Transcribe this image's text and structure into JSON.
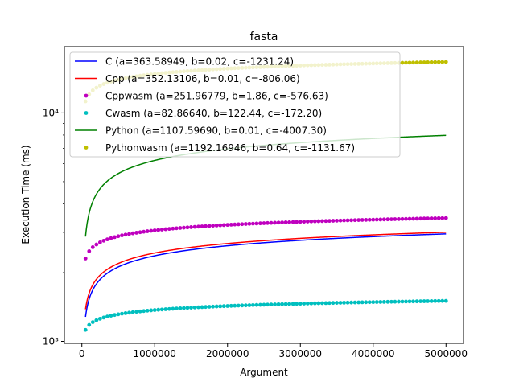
{
  "chart_data": {
    "type": "line",
    "title": "fasta",
    "xlabel": "Argument",
    "ylabel": "Execution Time (ms)",
    "xlim": [
      -240000,
      5240000
    ],
    "ylim": [
      980,
      19500
    ],
    "yscale": "log",
    "grid": false,
    "legend_position": "upper-left",
    "x_ticks": [
      0,
      1000000,
      2000000,
      3000000,
      4000000,
      5000000
    ],
    "x_tick_labels": [
      "0",
      "1000000",
      "2000000",
      "3000000",
      "4000000",
      "5000000"
    ],
    "y_ticks": [
      1000,
      10000
    ],
    "y_tick_labels": [
      "10³",
      "10⁴"
    ],
    "x_range": [
      50000,
      5000000
    ],
    "model": "y = a*ln(b*x) + c",
    "series": [
      {
        "name": "C (a=363.58949, b=0.02, c=-1231.24)",
        "style": "line",
        "color": "#0000ff",
        "a": 363.58949,
        "b": 0.02,
        "c": -1231.24
      },
      {
        "name": "Cpp (a=352.13106, b=0.01, c=-806.06)",
        "style": "line",
        "color": "#ff0000",
        "a": 352.13106,
        "b": 0.01,
        "c": -806.06
      },
      {
        "name": "Cppwasm (a=251.96779, b=1.86, c=-576.63)",
        "style": "points",
        "color": "#bf00bf",
        "a": 251.96779,
        "b": 1.86,
        "c": -576.63
      },
      {
        "name": "Cwasm (a=82.86640, b=122.44, c=-172.20)",
        "style": "points",
        "color": "#00bfbf",
        "a": 82.8664,
        "b": 122.44,
        "c": -172.2
      },
      {
        "name": "Python (a=1107.59690, b=0.01, c=-4007.30)",
        "style": "line",
        "color": "#008000",
        "a": 1107.5969,
        "b": 0.01,
        "c": -4007.3
      },
      {
        "name": "Pythonwasm (a=1192.16946, b=0.64, c=-1131.67)",
        "style": "points",
        "color": "#bfbf00",
        "a": 1192.16946,
        "b": 0.64,
        "c": -1131.67
      }
    ]
  }
}
